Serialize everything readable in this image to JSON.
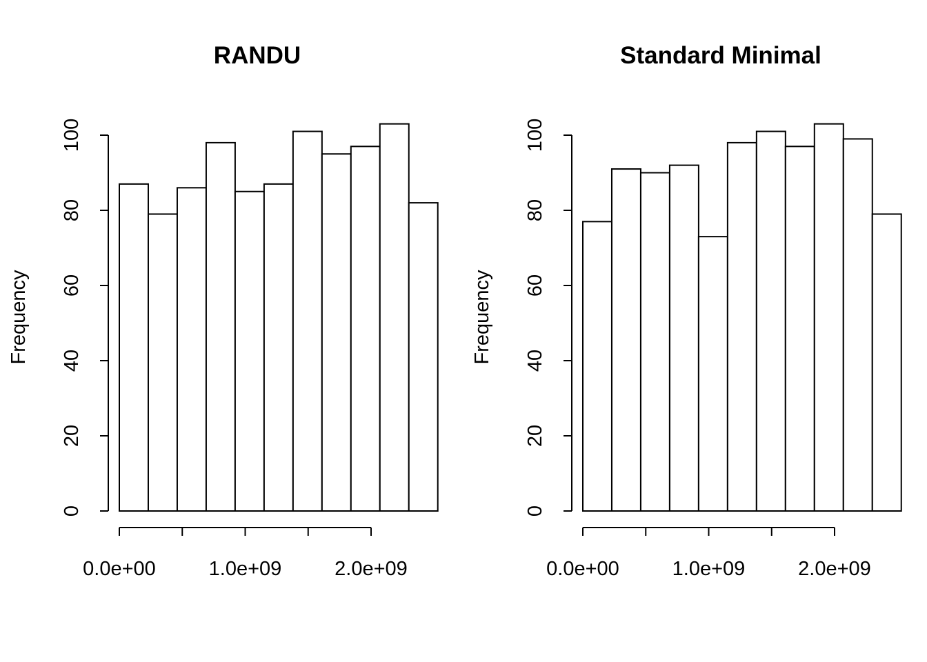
{
  "chart_data": [
    {
      "type": "bar",
      "title": "RANDU",
      "xlabel": "",
      "ylabel": "Frequency",
      "bin_width": 230000000,
      "bin_start": 0,
      "values": [
        87,
        79,
        86,
        98,
        85,
        87,
        101,
        95,
        97,
        103,
        82
      ],
      "xlim": [
        0,
        2530000000
      ],
      "ylim": [
        0,
        100
      ],
      "x_ticks": [
        0,
        500000000,
        1000000000,
        1500000000,
        2000000000
      ],
      "x_tick_labels": [
        {
          "value": 0,
          "label": "0.0e+00"
        },
        {
          "value": 1000000000,
          "label": "1.0e+09"
        },
        {
          "value": 2000000000,
          "label": "2.0e+09"
        }
      ],
      "y_ticks": [
        0,
        20,
        40,
        60,
        80,
        100
      ],
      "y_tick_labels": [
        "0",
        "20",
        "40",
        "60",
        "80",
        "100"
      ],
      "grid": false
    },
    {
      "type": "bar",
      "title": "Standard Minimal",
      "xlabel": "",
      "ylabel": "Frequency",
      "bin_width": 230000000,
      "bin_start": 0,
      "values": [
        77,
        91,
        90,
        92,
        73,
        98,
        101,
        97,
        103,
        99,
        79
      ],
      "xlim": [
        0,
        2530000000
      ],
      "ylim": [
        0,
        100
      ],
      "x_ticks": [
        0,
        500000000,
        1000000000,
        1500000000,
        2000000000
      ],
      "x_tick_labels": [
        {
          "value": 0,
          "label": "0.0e+00"
        },
        {
          "value": 1000000000,
          "label": "1.0e+09"
        },
        {
          "value": 2000000000,
          "label": "2.0e+09"
        }
      ],
      "y_ticks": [
        0,
        20,
        40,
        60,
        80,
        100
      ],
      "y_tick_labels": [
        "0",
        "20",
        "40",
        "60",
        "80",
        "100"
      ],
      "grid": false
    }
  ]
}
